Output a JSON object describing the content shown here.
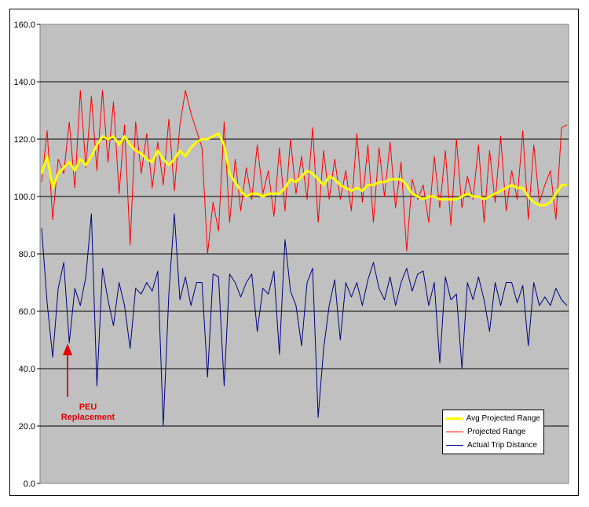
{
  "chart_data": {
    "type": "line",
    "ylim": [
      0,
      160
    ],
    "yticks": [
      "0.0",
      "20.0",
      "40.0",
      "60.0",
      "80.0",
      "100.0",
      "120.0",
      "140.0",
      "160.0"
    ],
    "grid": true,
    "legend_position": "bottom-right",
    "series": [
      {
        "name": "Avg Projected Range",
        "color": "#ffff00",
        "values": [
          108,
          114,
          103,
          108,
          110,
          112,
          109,
          113,
          111,
          114,
          118,
          121,
          120,
          121,
          118,
          121,
          118,
          116,
          115,
          113,
          112,
          116,
          113,
          111,
          113,
          116,
          114,
          117,
          119,
          120,
          120,
          121,
          122,
          118,
          108,
          105,
          102,
          100,
          101,
          101,
          100,
          101,
          101,
          101,
          103,
          106,
          105,
          107,
          109,
          108,
          106,
          104,
          107,
          106,
          104,
          103,
          102,
          103,
          102,
          104,
          104,
          105,
          105,
          106,
          106,
          106,
          104,
          101,
          100,
          99,
          100,
          100,
          99,
          99,
          99,
          99,
          100,
          101,
          100,
          100,
          99,
          100,
          101,
          102,
          103,
          104,
          103,
          103,
          100,
          98,
          97,
          97,
          98,
          101,
          104,
          104
        ],
        "values_note": "resampled"
      },
      {
        "name": "Projected Range",
        "color": "#ff0000",
        "values": [
          105,
          123,
          92,
          113,
          108,
          126,
          103,
          137,
          110,
          135,
          109,
          137,
          112,
          133,
          101,
          125,
          83,
          126,
          108,
          122,
          103,
          119,
          104,
          127,
          102,
          125,
          137,
          129,
          123,
          117,
          80,
          98,
          88,
          126,
          91,
          113,
          95,
          110,
          99,
          118,
          101,
          109,
          93,
          117,
          95,
          120,
          101,
          114,
          99,
          124,
          91,
          116,
          99,
          113,
          99,
          109,
          95,
          122,
          98,
          118,
          91,
          117,
          100,
          119,
          96,
          112,
          81,
          106,
          99,
          104,
          91,
          114,
          96,
          116,
          90,
          120,
          96,
          107,
          99,
          118,
          91,
          116,
          98,
          121,
          95,
          109,
          99,
          123,
          92,
          118,
          98,
          104,
          109,
          92,
          124,
          125
        ],
        "values_note": "resampled"
      },
      {
        "name": "Actual Trip Distance",
        "color": "#000080",
        "values": [
          89,
          63,
          44,
          68,
          77,
          49,
          68,
          62,
          72,
          94,
          34,
          75,
          64,
          55,
          70,
          62,
          47,
          68,
          66,
          70,
          67,
          74,
          20,
          66,
          94,
          64,
          72,
          62,
          70,
          70,
          37,
          73,
          72,
          34,
          73,
          70,
          65,
          70,
          73,
          53,
          68,
          66,
          74,
          45,
          85,
          67,
          62,
          48,
          70,
          75,
          23,
          47,
          62,
          71,
          50,
          70,
          65,
          70,
          62,
          71,
          77,
          68,
          64,
          72,
          62,
          70,
          75,
          67,
          73,
          74,
          62,
          70,
          42,
          72,
          64,
          66,
          40,
          70,
          64,
          72,
          64,
          53,
          70,
          62,
          70,
          70,
          63,
          69,
          48,
          70,
          62,
          65,
          62,
          68,
          64,
          62
        ],
        "values_note": "resampled"
      }
    ]
  },
  "annotation": {
    "label_line1": "PEU",
    "label_line2": "Replacement",
    "color": "#e60000"
  },
  "colors": {
    "plot_background": "#c0c0c0",
    "gridline": "#000000"
  }
}
